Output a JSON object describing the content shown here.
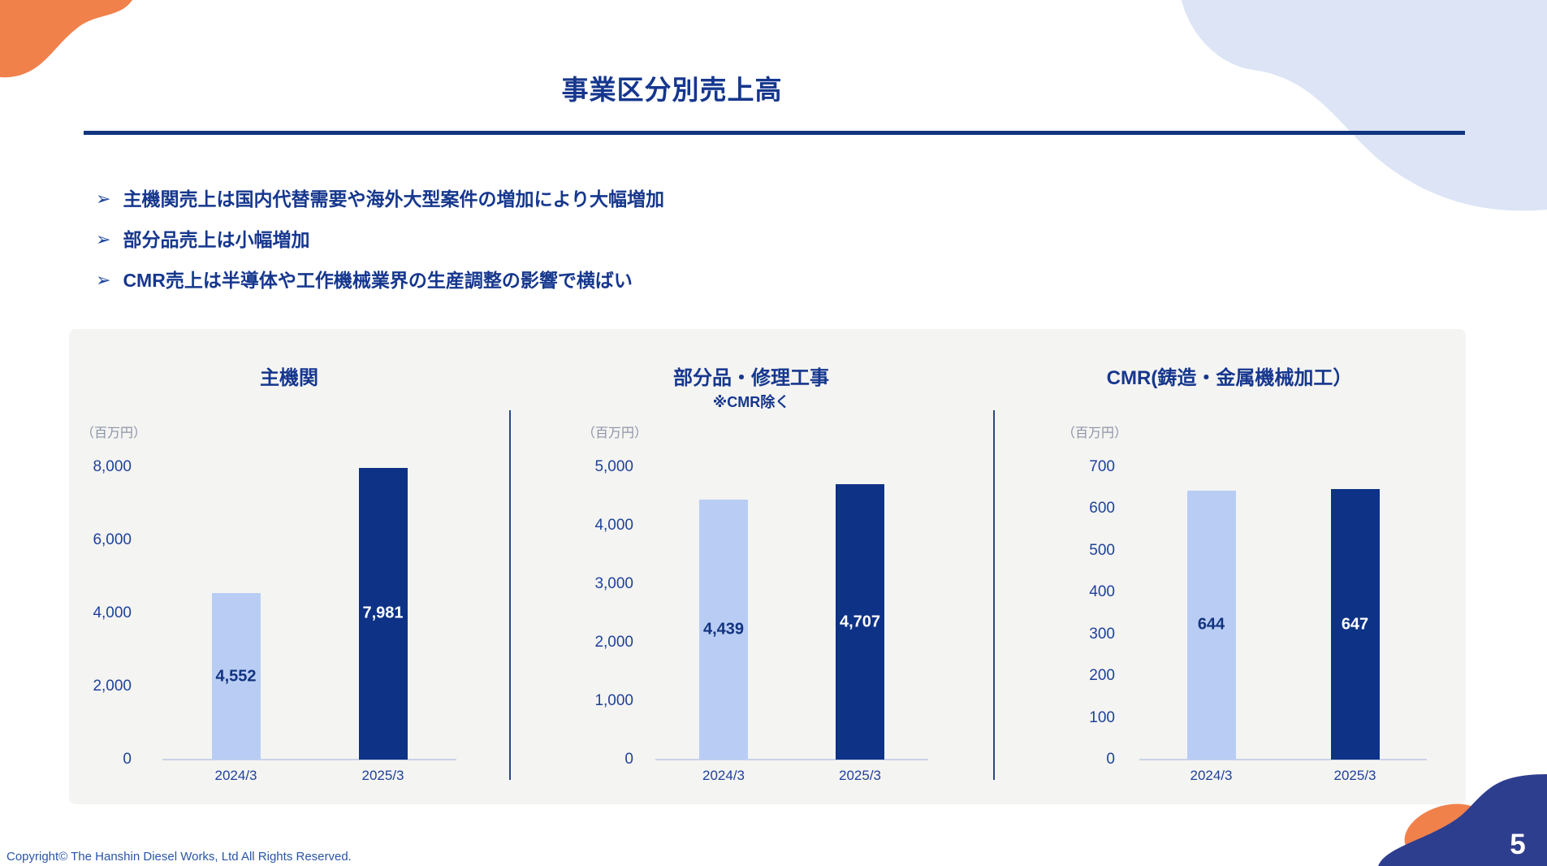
{
  "header": {
    "title": "事業区分別売上高"
  },
  "bullets": [
    {
      "marker": "➢",
      "text": "主機関売上は国内代替需要や海外大型案件の増加により大幅増加"
    },
    {
      "marker": "➢",
      "text": "部分品売上は小幅増加"
    },
    {
      "marker": "➢",
      "text": "CMR売上は半導体や工作機械業界の生産調整の影響で横ばい"
    }
  ],
  "chart_data": [
    {
      "type": "bar",
      "title": "主機関",
      "subtitle": "",
      "unit_label": "（百万円）",
      "categories": [
        "2024/3",
        "2025/3"
      ],
      "values": [
        4552,
        7981
      ],
      "value_labels": [
        "4,552",
        "7,981"
      ],
      "ylim": [
        0,
        8000
      ],
      "ytick_step": 2000,
      "ytick_labels": [
        "8,000",
        "6,000",
        "4,000",
        "2,000",
        "0"
      ],
      "grid": false,
      "legend": "none",
      "bar_colors": [
        "#b9cdf4",
        "#0d3286"
      ],
      "value_label_colors": [
        "#12337f",
        "#ffffff"
      ]
    },
    {
      "type": "bar",
      "title": "部分品・修理工事",
      "subtitle": "※CMR除く",
      "unit_label": "（百万円）",
      "categories": [
        "2024/3",
        "2025/3"
      ],
      "values": [
        4439,
        4707
      ],
      "value_labels": [
        "4,439",
        "4,707"
      ],
      "ylim": [
        0,
        5000
      ],
      "ytick_step": 1000,
      "ytick_labels": [
        "5,000",
        "4,000",
        "3,000",
        "2,000",
        "1,000",
        "0"
      ],
      "grid": false,
      "legend": "none",
      "bar_colors": [
        "#b9cdf4",
        "#0d3286"
      ],
      "value_label_colors": [
        "#12337f",
        "#ffffff"
      ]
    },
    {
      "type": "bar",
      "title": "CMR(鋳造・金属機械加工）",
      "subtitle": "",
      "unit_label": "（百万円）",
      "categories": [
        "2024/3",
        "2025/3"
      ],
      "values": [
        644,
        647
      ],
      "value_labels": [
        "644",
        "647"
      ],
      "ylim": [
        0,
        700
      ],
      "ytick_step": 100,
      "ytick_labels": [
        "700",
        "600",
        "500",
        "400",
        "300",
        "200",
        "100",
        "0"
      ],
      "grid": false,
      "legend": "none",
      "bar_colors": [
        "#b9cdf4",
        "#0d3286"
      ],
      "value_label_colors": [
        "#12337f",
        "#ffffff"
      ]
    }
  ],
  "footer": {
    "copyright": "Copyright© The Hanshin Diesel Works, Ltd All Rights Reserved.",
    "page_number": "5"
  },
  "colors": {
    "accent_navy": "#16378e",
    "title_rule": "#12357f",
    "light_bar": "#b9cdf4",
    "dark_bar": "#0d3286",
    "panel_bg": "#f4f4f2",
    "axis_line": "#c9d3e8",
    "orange_blob": "#f0814b",
    "lavender_blob": "#dce4f6",
    "bottom_blob_navy": "#2e3e8f",
    "copyright_blue": "#2a55a8"
  }
}
